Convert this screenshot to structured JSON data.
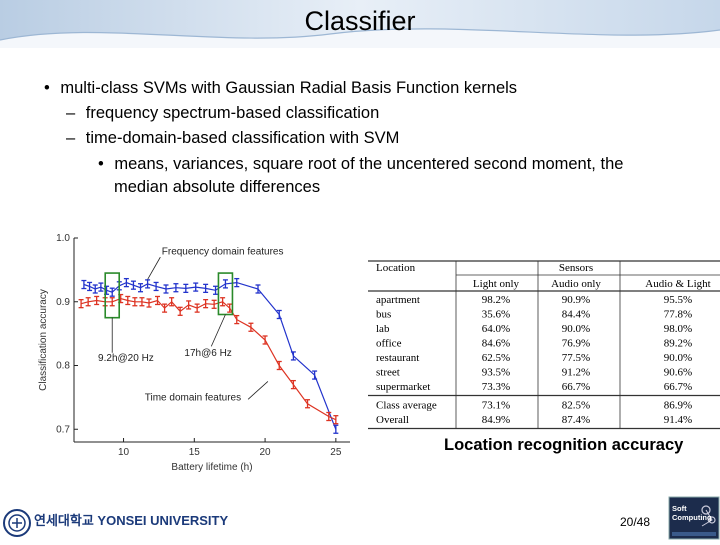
{
  "slide": {
    "title": "Classifier",
    "bullets": [
      {
        "marker": "•",
        "text": "multi-class SVMs with Gaussian Radial Basis Function kernels"
      },
      {
        "marker": "–",
        "text": "frequency spectrum-based classification"
      },
      {
        "marker": "–",
        "text": "time-domain-based classification with SVM"
      },
      {
        "marker": "•",
        "text": "means, variances, square root of the uncentered second moment, the"
      },
      {
        "marker": "",
        "text": "median absolute differences"
      }
    ],
    "page_number": "20/48",
    "university_logo": "연세대학교 YONSEI UNIVERSITY",
    "lab_logo": "Soft Computing"
  },
  "colors": {
    "freq": "#2233cc",
    "time": "#dd3322",
    "marker": "#2a8a2a",
    "header_grad": "#d7e4f0"
  },
  "chart_data": {
    "type": "line",
    "xlabel": "Battery lifetime (h)",
    "ylabel": "Classification accuracy",
    "xlim": [
      6.5,
      26
    ],
    "ylim": [
      0.68,
      1.0
    ],
    "x_ticks": [
      "10",
      "15",
      "20",
      "25"
    ],
    "y_ticks": [
      "1.0",
      "0.9",
      "0.8",
      "0.7"
    ],
    "series": [
      {
        "name": "Frequency domain features",
        "x": [
          7.2,
          7.6,
          8.0,
          8.4,
          8.8,
          9.2,
          9.7,
          10.2,
          10.7,
          11.2,
          11.7,
          12.3,
          13.0,
          13.7,
          14.4,
          15.1,
          15.8,
          16.5,
          17.2,
          18.0,
          19.5,
          21.0,
          22.0,
          23.5,
          25.0
        ],
        "y": [
          0.927,
          0.924,
          0.92,
          0.923,
          0.918,
          0.915,
          0.925,
          0.93,
          0.926,
          0.922,
          0.928,
          0.924,
          0.92,
          0.922,
          0.921,
          0.923,
          0.921,
          0.918,
          0.928,
          0.93,
          0.92,
          0.88,
          0.815,
          0.785,
          0.7
        ]
      },
      {
        "name": "Time domain features",
        "x": [
          7.0,
          7.5,
          8.1,
          8.7,
          9.2,
          9.8,
          10.3,
          10.8,
          11.3,
          11.8,
          12.4,
          12.9,
          13.4,
          14.0,
          14.6,
          15.2,
          15.8,
          16.4,
          17.0,
          17.5,
          18.0,
          19.0,
          20.0,
          21.0,
          22.0,
          23.0,
          24.5,
          25.0
        ],
        "y": [
          0.897,
          0.9,
          0.902,
          0.9,
          0.9,
          0.905,
          0.902,
          0.9,
          0.9,
          0.898,
          0.902,
          0.89,
          0.9,
          0.885,
          0.895,
          0.89,
          0.897,
          0.896,
          0.9,
          0.89,
          0.872,
          0.86,
          0.84,
          0.8,
          0.77,
          0.74,
          0.72,
          0.715
        ]
      }
    ],
    "annotations": [
      {
        "text": "Frequency domain features"
      },
      {
        "text": "Time domain features"
      },
      {
        "text": "9.2h@20 Hz"
      },
      {
        "text": "17h@6 Hz"
      }
    ]
  },
  "table": {
    "header_location": "Location",
    "header_sensors": "Sensors",
    "subheaders": [
      "Light only",
      "Audio only",
      "Audio & Light"
    ],
    "rows": [
      [
        "apartment",
        "98.2%",
        "90.9%",
        "95.5%"
      ],
      [
        "bus",
        "35.6%",
        "84.4%",
        "77.8%"
      ],
      [
        "lab",
        "64.0%",
        "90.0%",
        "98.0%"
      ],
      [
        "office",
        "84.6%",
        "76.9%",
        "89.2%"
      ],
      [
        "restaurant",
        "62.5%",
        "77.5%",
        "90.0%"
      ],
      [
        "street",
        "93.5%",
        "91.2%",
        "90.6%"
      ],
      [
        "supermarket",
        "73.3%",
        "66.7%",
        "66.7%"
      ]
    ],
    "summary_rows": [
      [
        "Class average",
        "73.1%",
        "82.5%",
        "86.9%"
      ],
      [
        "Overall",
        "84.9%",
        "87.4%",
        "91.4%"
      ]
    ],
    "caption": "Location recognition accuracy"
  }
}
